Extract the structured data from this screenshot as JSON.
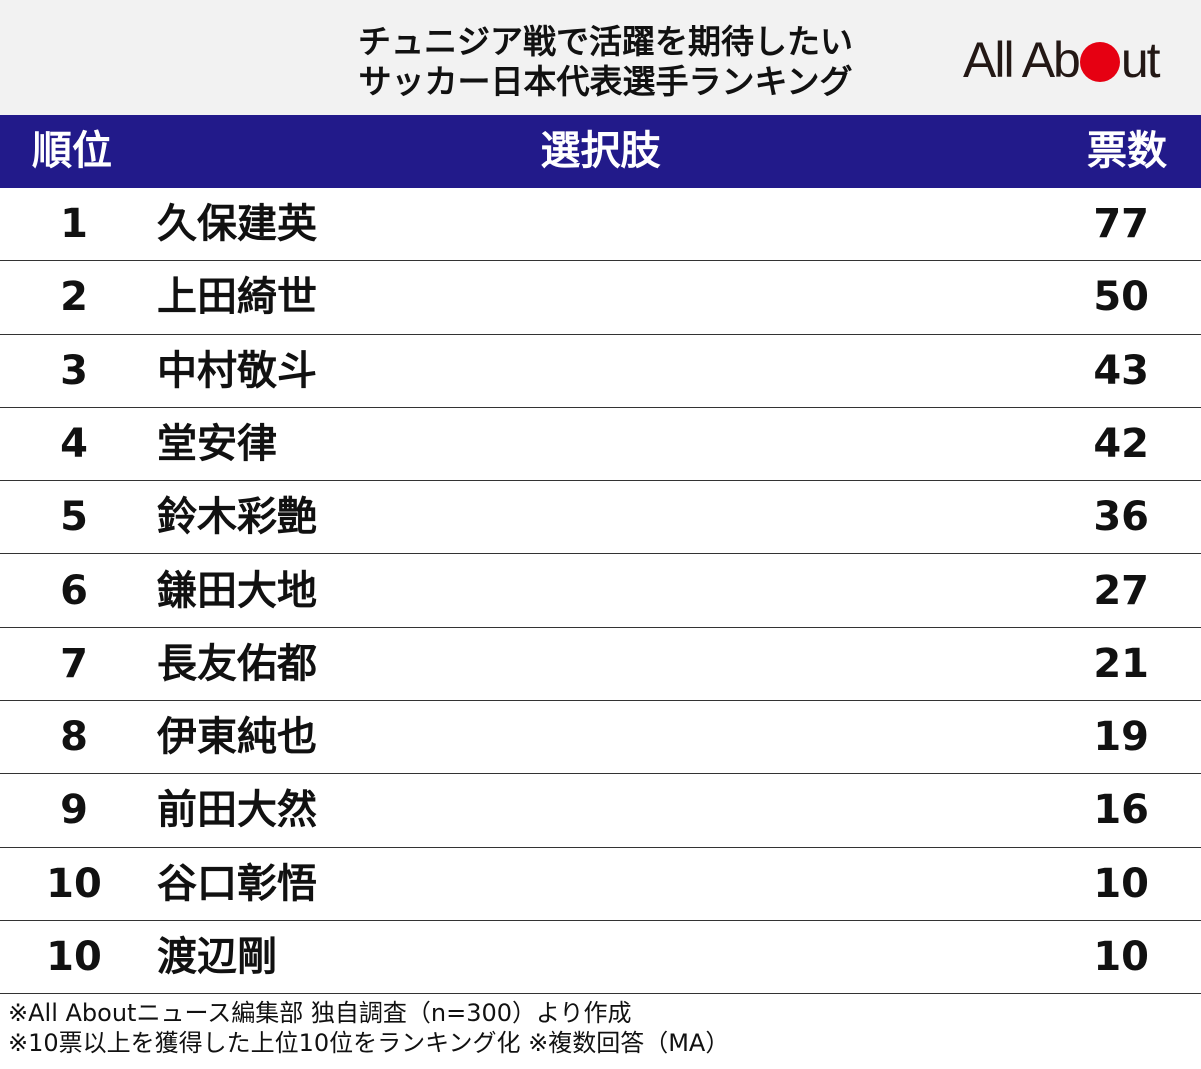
{
  "title": {
    "line1": "チュニジア戦で活躍を期待したい",
    "line2": "サッカー日本代表選手ランキング"
  },
  "logo": {
    "text_before": "All Ab",
    "text_after": "ut",
    "dot_color": "#e60012"
  },
  "colors": {
    "header_bg": "#221a8a",
    "header_text": "#ffffff",
    "title_band_bg": "#f2f2f2"
  },
  "chart_data": {
    "type": "table",
    "columns": [
      "順位",
      "選択肢",
      "票数"
    ],
    "rows": [
      {
        "rank": "1",
        "name": "久保建英",
        "votes": "77"
      },
      {
        "rank": "2",
        "name": "上田綺世",
        "votes": "50"
      },
      {
        "rank": "3",
        "name": "中村敬斗",
        "votes": "43"
      },
      {
        "rank": "4",
        "name": "堂安律",
        "votes": "42"
      },
      {
        "rank": "5",
        "name": "鈴木彩艶",
        "votes": "36"
      },
      {
        "rank": "6",
        "name": "鎌田大地",
        "votes": "27"
      },
      {
        "rank": "7",
        "name": "長友佑都",
        "votes": "21"
      },
      {
        "rank": "8",
        "name": "伊東純也",
        "votes": "19"
      },
      {
        "rank": "9",
        "name": "前田大然",
        "votes": "16"
      },
      {
        "rank": "10",
        "name": "谷口彰悟",
        "votes": "10"
      },
      {
        "rank": "10",
        "name": "渡辺剛",
        "votes": "10"
      }
    ]
  },
  "footnotes": [
    "※All Aboutニュース編集部 独自調査（n=300）より作成",
    "※10票以上を獲得した上位10位をランキング化 ※複数回答（MA）"
  ]
}
